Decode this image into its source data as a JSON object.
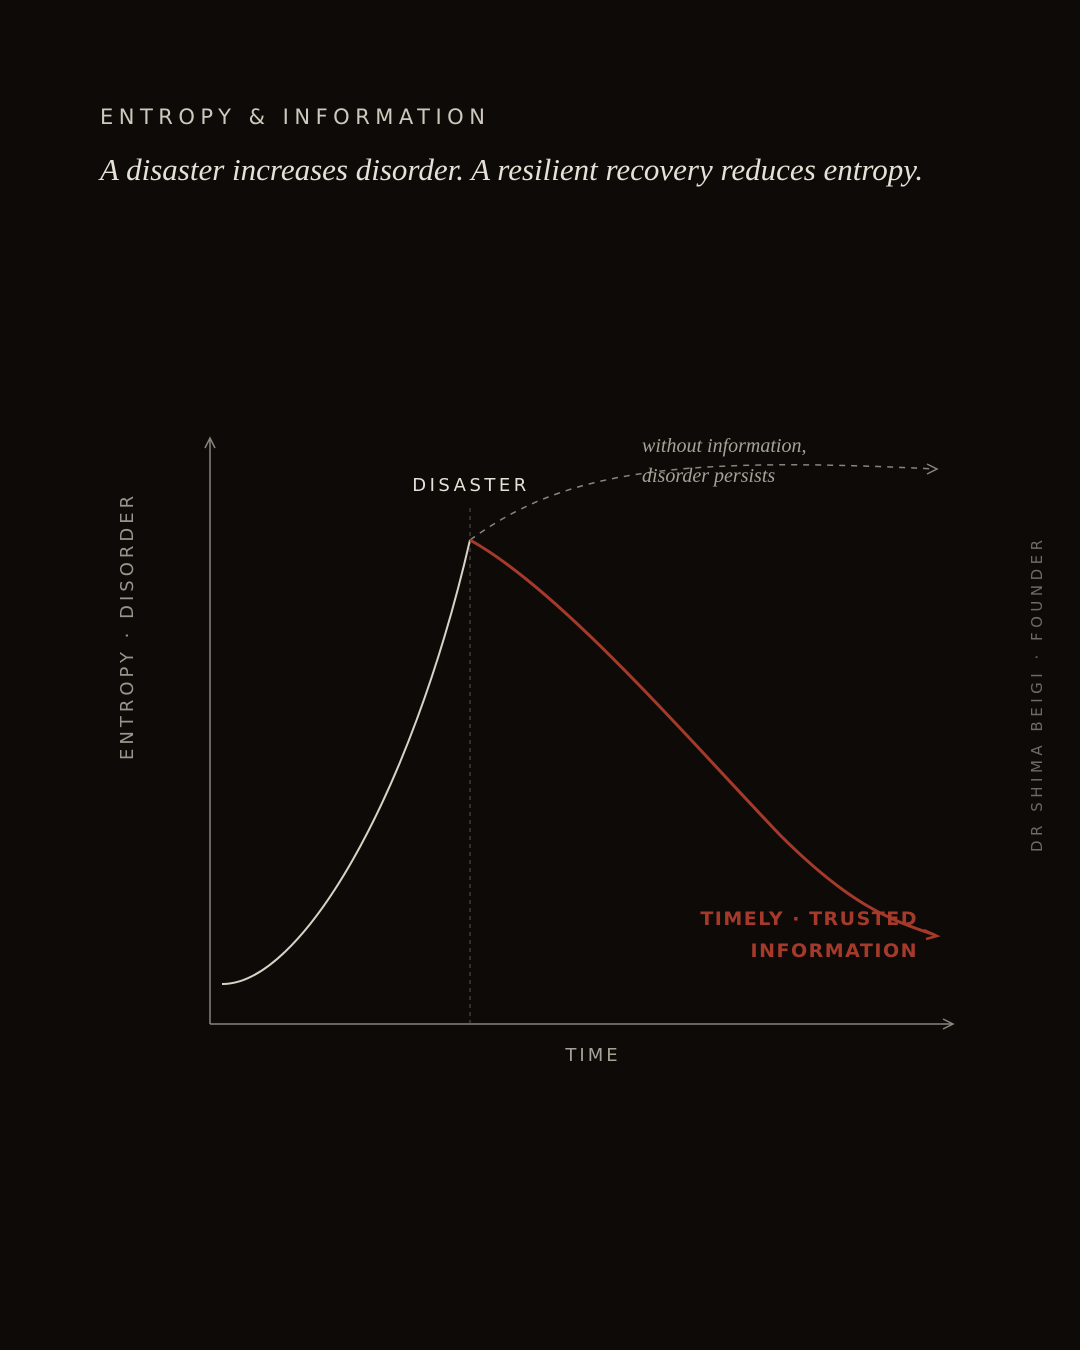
{
  "header": {
    "eyebrow": "ENTROPY & INFORMATION",
    "title": "A disaster increases disorder. A resilient recovery reduces entropy."
  },
  "diagram": {
    "y_axis_label": "ENTROPY · DISORDER",
    "x_axis_label": "TIME",
    "event_label": "DISASTER",
    "persist_note": [
      "without information,",
      "disorder persists"
    ],
    "recovery_label": [
      "TIMELY · TRUSTED",
      "INFORMATION"
    ]
  },
  "credit": "DR SHIMA BEIGI · FOUNDER"
}
